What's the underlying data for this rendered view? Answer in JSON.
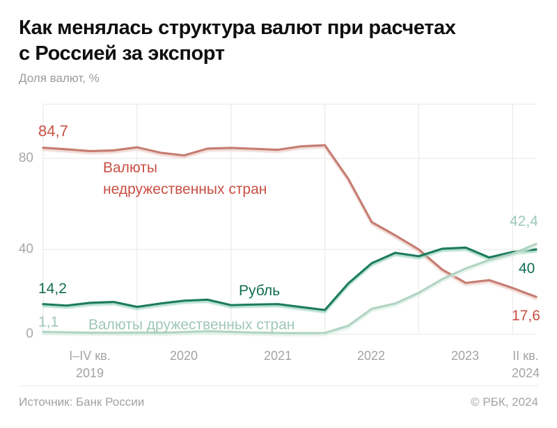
{
  "header": {
    "title_line1": "Как менялась структура валют при расчетах",
    "title_line2": "с Россией за экспорт",
    "subtitle": "Доля валют, %"
  },
  "footer": {
    "source": "Источник: Банк России",
    "copyright": "© РБК, 2024"
  },
  "colors": {
    "title": "#0f0f0f",
    "muted_text": "#9b9b9b",
    "axis_text": "#a6a6a6",
    "grid": "#ebebeb",
    "unfriendly_line": "#c67d72",
    "unfriendly_text": "#c94f43",
    "ruble_line": "#1d7b5f",
    "ruble_text": "#116d52",
    "friendly_line": "#b2d4c3",
    "friendly_text": "#9fc8b6"
  },
  "annotations": {
    "unfriendly_label_line1": "Валюты",
    "unfriendly_label_line2": "недружественных стран",
    "ruble_label": "Рубль",
    "friendly_label": "Валюты дружественных стран",
    "unfriendly_start": "84,7",
    "unfriendly_end": "17,6",
    "ruble_start": "14,2",
    "ruble_end": "40",
    "friendly_start": "1,1",
    "friendly_end": "42,4"
  },
  "chart_data": {
    "type": "line",
    "title": "Как менялась структура валют при расчетах с Россией за экспорт",
    "ylabel": "Доля валют, %",
    "grid": true,
    "ylim": [
      0,
      100
    ],
    "y_ticks": [
      0,
      40,
      80
    ],
    "x_axis_ticks": [
      {
        "line1": "I–IV кв.",
        "line2": "2019"
      },
      {
        "line1": "2020"
      },
      {
        "line1": "2021"
      },
      {
        "line1": "2022"
      },
      {
        "line1": "2023"
      },
      {
        "line1": "II кв.",
        "line2": "2024"
      }
    ],
    "x": [
      "I кв. 2019",
      "II кв. 2019",
      "III кв. 2019",
      "IV кв. 2019",
      "I кв. 2020",
      "II кв. 2020",
      "III кв. 2020",
      "IV кв. 2020",
      "I кв. 2021",
      "II кв. 2021",
      "III кв. 2021",
      "IV кв. 2021",
      "I кв. 2022",
      "II кв. 2022",
      "III кв. 2022",
      "IV кв. 2022",
      "I кв. 2023",
      "II кв. 2023",
      "III кв. 2023",
      "IV кв. 2023",
      "I кв. 2024",
      "II кв. 2024"
    ],
    "series": [
      {
        "name": "Валюты недружественных стран",
        "color": "#c67d72",
        "label_color": "#c94f43",
        "start_label": "84,7",
        "end_label": "17,6",
        "values": [
          84.7,
          84.0,
          83.2,
          83.5,
          84.9,
          82.5,
          81.3,
          84.3,
          84.6,
          84.2,
          83.8,
          85.3,
          85.8,
          71.0,
          52.0,
          46.2,
          40.0,
          30.5,
          24.2,
          25.5,
          21.8,
          17.6
        ]
      },
      {
        "name": "Рубль",
        "color": "#1d7b5f",
        "label_color": "#116d52",
        "start_label": "14,2",
        "end_label": "40",
        "values": [
          14.2,
          13.5,
          14.8,
          15.2,
          12.9,
          14.5,
          15.8,
          16.3,
          13.7,
          14.0,
          14.2,
          12.8,
          11.4,
          24.0,
          33.5,
          38.4,
          36.8,
          40.3,
          40.8,
          36.2,
          38.8,
          40.0
        ]
      },
      {
        "name": "Валюты дружественных стран",
        "color": "#b2d4c3",
        "label_color": "#9fc8b6",
        "start_label": "1,1",
        "end_label": "42,4",
        "values": [
          1.1,
          0.9,
          0.7,
          0.7,
          0.8,
          0.7,
          1.0,
          1.4,
          1.1,
          0.8,
          0.6,
          0.5,
          0.6,
          4.0,
          12.0,
          14.5,
          19.5,
          26.0,
          31.0,
          35.0,
          38.0,
          42.4
        ]
      }
    ]
  }
}
